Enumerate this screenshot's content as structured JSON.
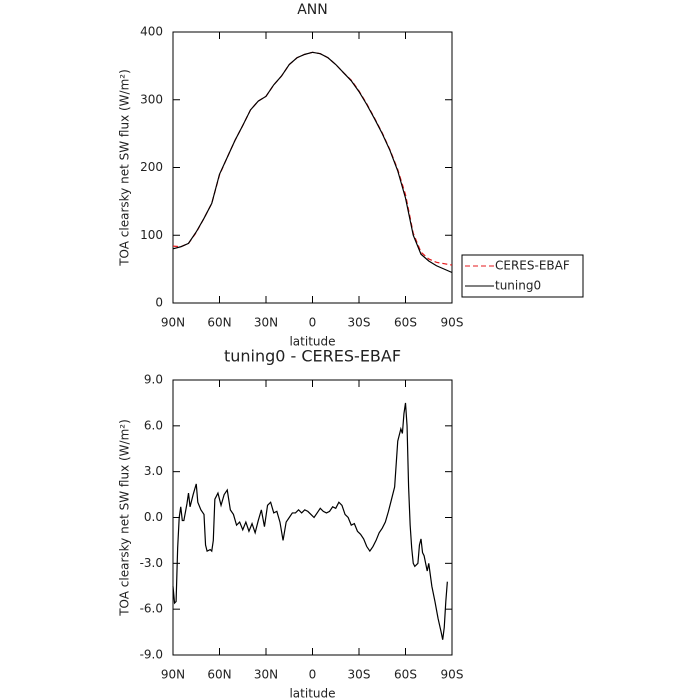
{
  "chart_data": [
    {
      "type": "line",
      "title": "ANN",
      "xlabel": "latitude",
      "ylabel": "TOA clearsky net SW flux (W/m²)",
      "x": [
        90,
        85,
        80,
        75,
        70,
        65,
        60,
        55,
        50,
        45,
        40,
        35,
        30,
        25,
        20,
        15,
        10,
        5,
        0,
        -5,
        -10,
        -15,
        -20,
        -25,
        -30,
        -35,
        -40,
        -45,
        -50,
        -55,
        -60,
        -65,
        -70,
        -75,
        -80,
        -85,
        -90
      ],
      "series": [
        {
          "name": "CERES-EBAF",
          "color": "#e41a1c",
          "linestyle": "dashed",
          "values": [
            84,
            83,
            88,
            104,
            125,
            147,
            189,
            215,
            240,
            262,
            285,
            298,
            305,
            322,
            335,
            352,
            362,
            367,
            370,
            368,
            362,
            352,
            340,
            329,
            313,
            294,
            273,
            251,
            226,
            197,
            160,
            103,
            75,
            65,
            60,
            58,
            56
          ]
        },
        {
          "name": "tuning0",
          "color": "#000000",
          "linestyle": "solid",
          "values": [
            80,
            83,
            88,
            105,
            125,
            147,
            190,
            215,
            240,
            262,
            285,
            298,
            305,
            322,
            335,
            352,
            362,
            367,
            370,
            368,
            362,
            352,
            340,
            328,
            312,
            293,
            272,
            250,
            225,
            195,
            155,
            100,
            72,
            62,
            55,
            50,
            45
          ]
        }
      ],
      "xlim": [
        90,
        -90
      ],
      "xticks": [
        {
          "value": 90,
          "label": "90N"
        },
        {
          "value": 60,
          "label": "60N"
        },
        {
          "value": 30,
          "label": "30N"
        },
        0,
        {
          "value": -30,
          "label": "30S"
        },
        {
          "value": -60,
          "label": "60S"
        },
        {
          "value": -90,
          "label": "90S"
        }
      ],
      "ylim": [
        0,
        400
      ],
      "yticks": [
        0,
        100,
        200,
        300,
        400
      ],
      "legend": "right"
    },
    {
      "type": "line",
      "title": "tuning0 - CERES-EBAF",
      "xlabel": "latitude",
      "ylabel": "TOA clearsky net SW flux (W/m²)",
      "x": [
        90,
        89,
        88,
        87,
        86,
        85,
        84,
        83,
        81,
        80,
        79,
        77,
        75,
        74,
        72,
        70,
        69,
        68,
        66,
        65,
        64,
        63,
        61,
        59,
        57,
        55,
        53,
        51,
        49,
        47,
        45,
        43,
        41,
        39,
        37,
        35,
        33,
        31,
        29,
        27,
        25,
        23,
        21,
        19,
        17,
        15,
        13,
        11,
        9,
        7,
        5,
        3,
        1,
        -1,
        -3,
        -5,
        -7,
        -9,
        -11,
        -13,
        -15,
        -17,
        -19,
        -21,
        -23,
        -25,
        -27,
        -29,
        -31,
        -33,
        -35,
        -37,
        -39,
        -41,
        -43,
        -45,
        -47,
        -49,
        -51,
        -53,
        -55,
        -57,
        -58,
        -59,
        -60,
        -61,
        -62,
        -63,
        -64,
        -65,
        -66,
        -68,
        -69,
        -70,
        -71,
        -72,
        -74,
        -75,
        -77,
        -79,
        -81,
        -83,
        -84,
        -85,
        -86,
        -87
      ],
      "values": [
        -4.5,
        -5.6,
        -5.5,
        -2,
        0,
        0.7,
        -0.2,
        -0.2,
        0.9,
        1.6,
        0.7,
        1.5,
        2.2,
        1.0,
        0.5,
        0.2,
        -1.8,
        -2.2,
        -2.1,
        -2.2,
        -1.5,
        1.2,
        1.6,
        0.8,
        1.5,
        1.8,
        0.5,
        0.2,
        -0.5,
        -0.3,
        -0.8,
        -0.3,
        -0.9,
        -0.4,
        -1.0,
        -0.2,
        0.5,
        -0.6,
        0.8,
        1.0,
        0.3,
        0.4,
        -0.3,
        -1.5,
        -0.3,
        0.0,
        0.3,
        0.3,
        0.5,
        0.3,
        0.5,
        0.4,
        0.2,
        0.0,
        0.3,
        0.6,
        0.4,
        0.3,
        0.4,
        0.7,
        0.6,
        1.0,
        0.8,
        0.2,
        0.0,
        -0.5,
        -0.4,
        -0.9,
        -1.1,
        -1.4,
        -1.9,
        -2.2,
        -1.9,
        -1.5,
        -1.0,
        -0.7,
        -0.3,
        0.4,
        1.2,
        2.0,
        5.0,
        5.8,
        5.5,
        6.8,
        7.5,
        6.0,
        2.0,
        -0.5,
        -2.0,
        -3.0,
        -3.2,
        -3.0,
        -1.8,
        -1.4,
        -2.3,
        -2.5,
        -3.5,
        -3.0,
        -4.5,
        -5.5,
        -6.6,
        -7.5,
        -8.0,
        -7.2,
        -5.5,
        -4.2
      ],
      "color": "#000000",
      "xlim": [
        90,
        -90
      ],
      "xticks": [
        {
          "value": 90,
          "label": "90N"
        },
        {
          "value": 60,
          "label": "60N"
        },
        {
          "value": 30,
          "label": "30N"
        },
        0,
        {
          "value": -30,
          "label": "30S"
        },
        {
          "value": -60,
          "label": "60S"
        },
        {
          "value": -90,
          "label": "90S"
        }
      ],
      "ylim": [
        -9,
        9
      ],
      "yticks": [
        {
          "value": 9,
          "label": "9.0"
        },
        {
          "value": 6,
          "label": "6.0"
        },
        {
          "value": 3,
          "label": "3.0"
        },
        {
          "value": 0,
          "label": "0.0"
        },
        {
          "value": -3,
          "label": "-3.0"
        },
        {
          "value": -6,
          "label": "-6.0"
        },
        {
          "value": -9,
          "label": "-9.0"
        }
      ]
    }
  ]
}
